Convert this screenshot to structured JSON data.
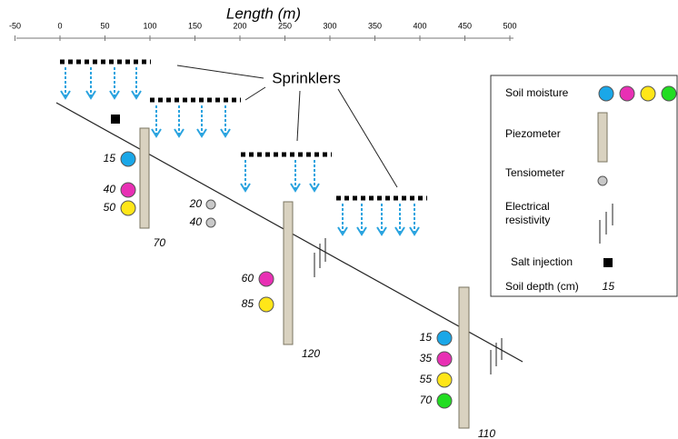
{
  "axis": {
    "title": "Length (m)",
    "ticks": [
      -50,
      0,
      50,
      100,
      150,
      200,
      250,
      300,
      350,
      400,
      450,
      500
    ]
  },
  "callout": "Sprinklers",
  "stations": [
    {
      "piezometer_depth": 70,
      "soil_moisture": [
        15,
        40,
        50
      ],
      "tensiometer": [
        20,
        40
      ]
    },
    {
      "piezometer_depth": 120,
      "soil_moisture": [
        60,
        85
      ]
    },
    {
      "piezometer_depth": 110,
      "soil_moisture": [
        15,
        35,
        55,
        70
      ]
    }
  ],
  "legend": [
    "Soil moisture",
    "Piezometer",
    "Tensiometer",
    "Electrical resistivity",
    "Salt injection",
    "Soil depth (cm)"
  ],
  "legend_depth_example": 15
}
